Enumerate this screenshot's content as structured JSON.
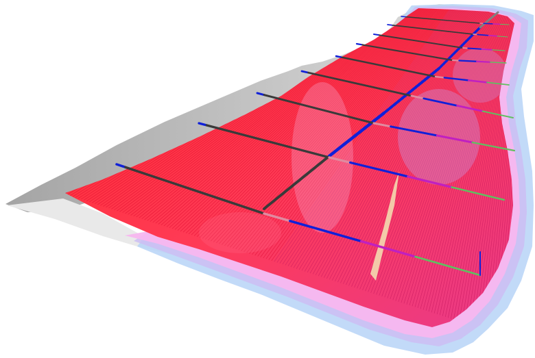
{
  "view": {
    "background": "#ffffff",
    "colors": {
      "outer_gray": "#b9b9b9",
      "light_gray": "#e6e6e6",
      "outline_blue": "#a9c9f4",
      "outline_lavender": "#c9b8f2",
      "outline_pink": "#f7b5ee",
      "field_red": "#ff1a2e",
      "field_magenta": "#e0307a",
      "hatch_red": "#d8002a",
      "hatch_magenta": "#c0105a",
      "trench_blue": "#1020d8",
      "trench_dark": "#3a3a3a",
      "trench_magenta": "#c020c0",
      "trench_green": "#60c060",
      "trench_pink": "#e08aa0"
    }
  }
}
